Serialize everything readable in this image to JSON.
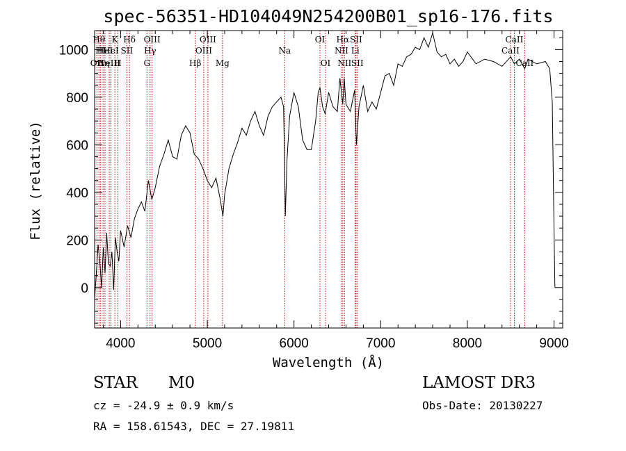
{
  "chart_data": {
    "type": "line",
    "title": "spec-56351-HD104049N254200B01_sp16-176.fits",
    "xlabel": "Wavelength (Å)",
    "ylabel": "Flux (relative)",
    "xlim": [
      3700,
      9100
    ],
    "ylim": [
      -170,
      1080
    ],
    "x_ticks": [
      4000,
      5000,
      6000,
      7000,
      8000,
      9000
    ],
    "y_ticks": [
      0,
      200,
      400,
      600,
      800,
      1000
    ],
    "grid": false,
    "series": [
      {
        "name": "flux",
        "x": [
          3700,
          3720,
          3740,
          3760,
          3780,
          3800,
          3820,
          3840,
          3860,
          3880,
          3900,
          3920,
          3940,
          3960,
          3980,
          4000,
          4040,
          4080,
          4120,
          4160,
          4200,
          4240,
          4280,
          4320,
          4360,
          4400,
          4450,
          4500,
          4550,
          4600,
          4650,
          4700,
          4750,
          4800,
          4850,
          4900,
          4950,
          5000,
          5050,
          5100,
          5150,
          5180,
          5200,
          5250,
          5300,
          5350,
          5400,
          5450,
          5500,
          5550,
          5600,
          5650,
          5700,
          5750,
          5800,
          5850,
          5880,
          5893,
          5900,
          5920,
          5950,
          6000,
          6050,
          6100,
          6150,
          6200,
          6250,
          6280,
          6300,
          6330,
          6360,
          6400,
          6450,
          6500,
          6530,
          6563,
          6580,
          6600,
          6650,
          6700,
          6720,
          6750,
          6800,
          6850,
          6900,
          6950,
          7000,
          7050,
          7100,
          7150,
          7200,
          7250,
          7300,
          7350,
          7400,
          7450,
          7500,
          7550,
          7600,
          7650,
          7700,
          7750,
          7800,
          7850,
          7900,
          7950,
          8000,
          8100,
          8200,
          8300,
          8400,
          8500,
          8542,
          8600,
          8662,
          8700,
          8800,
          8900,
          8950,
          8980,
          9000,
          9010
        ],
        "y": [
          -50,
          60,
          180,
          110,
          0,
          170,
          60,
          230,
          100,
          90,
          150,
          -10,
          210,
          150,
          110,
          240,
          170,
          260,
          210,
          290,
          330,
          360,
          320,
          450,
          370,
          420,
          510,
          560,
          620,
          550,
          540,
          640,
          680,
          650,
          560,
          540,
          500,
          450,
          420,
          460,
          370,
          300,
          390,
          500,
          560,
          610,
          670,
          640,
          700,
          740,
          680,
          640,
          720,
          760,
          780,
          800,
          760,
          500,
          300,
          540,
          720,
          820,
          760,
          620,
          580,
          580,
          700,
          820,
          840,
          760,
          730,
          820,
          760,
          740,
          880,
          770,
          880,
          770,
          740,
          830,
          600,
          760,
          850,
          740,
          780,
          750,
          820,
          890,
          900,
          850,
          940,
          930,
          970,
          980,
          1010,
          1000,
          1050,
          1010,
          1070,
          990,
          970,
          980,
          940,
          960,
          930,
          950,
          990,
          940,
          960,
          950,
          930,
          970,
          940,
          960,
          920,
          960,
          940,
          950,
          920,
          780,
          250,
          0
        ]
      }
    ],
    "line_markers": [
      {
        "wavelength": 3727,
        "label": "OII",
        "row": 2
      },
      {
        "wavelength": 3750,
        "label": "Hθ",
        "row": 0
      },
      {
        "wavelength": 3770,
        "label": "HI",
        "row": 1
      },
      {
        "wavelength": 3797,
        "label": "Hη",
        "row": 2
      },
      {
        "wavelength": 3820,
        "label": "HeI",
        "row": 1
      },
      {
        "wavelength": 3869,
        "label": "NeIII",
        "row": 2
      },
      {
        "wavelength": 3889,
        "label": "HeI",
        "row": 1
      },
      {
        "wavelength": 3934,
        "label": "K",
        "row": 0
      },
      {
        "wavelength": 3969,
        "label": "H",
        "row": 2
      },
      {
        "wavelength": 4072,
        "label": "SII",
        "row": 1
      },
      {
        "wavelength": 4102,
        "label": "Hδ",
        "row": 0
      },
      {
        "wavelength": 4304,
        "label": "G",
        "row": 2
      },
      {
        "wavelength": 4340,
        "label": "Hγ",
        "row": 1
      },
      {
        "wavelength": 4363,
        "label": "OIII",
        "row": 0
      },
      {
        "wavelength": 4861,
        "label": "Hβ",
        "row": 2
      },
      {
        "wavelength": 4959,
        "label": "OIII",
        "row": 1
      },
      {
        "wavelength": 5007,
        "label": "OIII",
        "row": 0
      },
      {
        "wavelength": 5175,
        "label": "Mg",
        "row": 2
      },
      {
        "wavelength": 5893,
        "label": "Na",
        "row": 1
      },
      {
        "wavelength": 6300,
        "label": "OI",
        "row": 0
      },
      {
        "wavelength": 6364,
        "label": "OI",
        "row": 2
      },
      {
        "wavelength": 6548,
        "label": "NII",
        "row": 1
      },
      {
        "wavelength": 6563,
        "label": "Hα",
        "row": 0
      },
      {
        "wavelength": 6583,
        "label": "NII",
        "row": 2
      },
      {
        "wavelength": 6707,
        "label": "Li",
        "row": 1
      },
      {
        "wavelength": 6716,
        "label": "SII",
        "row": 0
      },
      {
        "wavelength": 6731,
        "label": "SII",
        "row": 2
      },
      {
        "wavelength": 8498,
        "label": "CaII",
        "row": 1
      },
      {
        "wavelength": 8542,
        "label": "CaII",
        "row": 0
      },
      {
        "wavelength": 8662,
        "label": "CaII",
        "row": 2
      }
    ],
    "colors": {
      "spectrum": "#000000",
      "marker": "#c00000"
    }
  },
  "info": {
    "object_class": "STAR",
    "subclass": "M0",
    "survey": "LAMOST DR3",
    "redshift": "cz = -24.9 ± 0.9 km/s",
    "obs_date": "Obs-Date: 20130227",
    "coords": "RA = 158.61543, DEC =  27.19811"
  }
}
